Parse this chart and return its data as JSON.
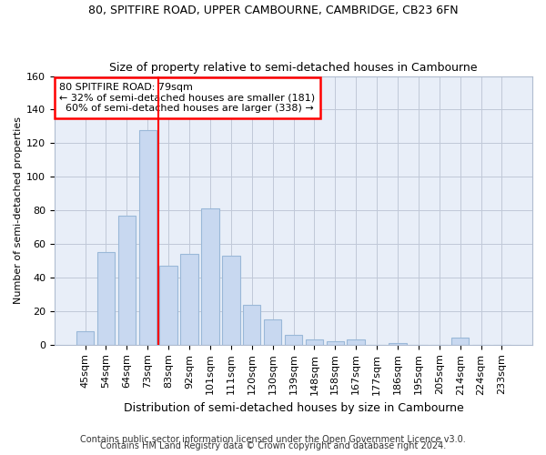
{
  "title_line1": "80, SPITFIRE ROAD, UPPER CAMBOURNE, CAMBRIDGE, CB23 6FN",
  "title_line2": "Size of property relative to semi-detached houses in Cambourne",
  "xlabel": "Distribution of semi-detached houses by size in Cambourne",
  "ylabel": "Number of semi-detached properties",
  "footer_line1": "Contains HM Land Registry data © Crown copyright and database right 2024.",
  "footer_line2": "Contains public sector information licensed under the Open Government Licence v3.0.",
  "categories": [
    "45sqm",
    "54sqm",
    "64sqm",
    "73sqm",
    "83sqm",
    "92sqm",
    "101sqm",
    "111sqm",
    "120sqm",
    "130sqm",
    "139sqm",
    "148sqm",
    "158sqm",
    "167sqm",
    "177sqm",
    "186sqm",
    "195sqm",
    "205sqm",
    "214sqm",
    "224sqm",
    "233sqm"
  ],
  "values": [
    8,
    55,
    77,
    128,
    47,
    54,
    81,
    53,
    24,
    15,
    6,
    3,
    2,
    3,
    0,
    1,
    0,
    0,
    4,
    0,
    0
  ],
  "bar_color": "#c8d8f0",
  "bar_edge_color": "#9ab8d8",
  "property_size": "79sqm",
  "property_name": "80 SPITFIRE ROAD",
  "pct_smaller": 32,
  "count_smaller": 181,
  "pct_larger": 60,
  "count_larger": 338,
  "red_line_x": 3.5,
  "ylim": [
    0,
    160
  ],
  "yticks": [
    0,
    20,
    40,
    60,
    80,
    100,
    120,
    140,
    160
  ],
  "bg_color": "#e8eef8",
  "grid_color": "#c0c8d8",
  "title1_fontsize": 9,
  "title2_fontsize": 9,
  "ylabel_fontsize": 8,
  "xlabel_fontsize": 9,
  "tick_fontsize": 8,
  "annot_fontsize": 8,
  "footer_fontsize": 7
}
